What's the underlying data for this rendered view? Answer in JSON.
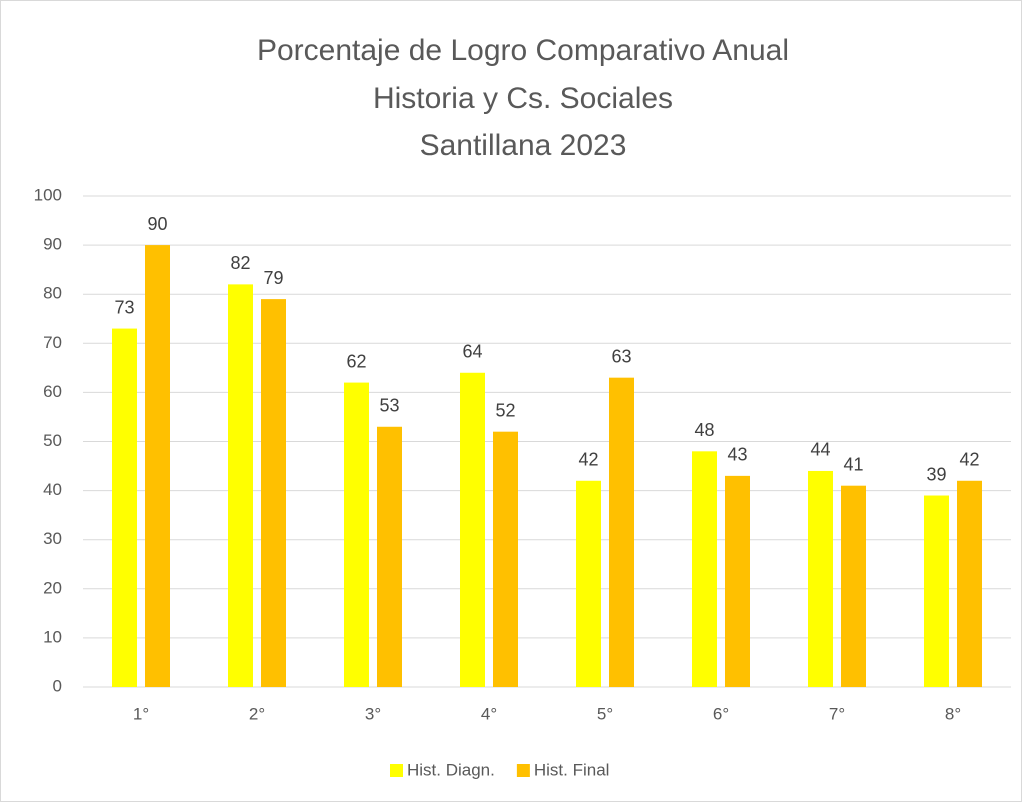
{
  "chart_data": {
    "type": "bar",
    "title": [
      "Porcentaje de Logro Comparativo Anual",
      "Historia y Cs. Sociales",
      "Santillana 2023"
    ],
    "categories": [
      "1°",
      "2°",
      "3°",
      "4°",
      "5°",
      "6°",
      "7°",
      "8°"
    ],
    "series": [
      {
        "name": "Hist. Diagn.",
        "color": "#ffff00",
        "values": [
          73,
          82,
          62,
          64,
          42,
          48,
          44,
          39
        ]
      },
      {
        "name": "Hist. Final",
        "color": "#ffc000",
        "values": [
          90,
          79,
          53,
          52,
          63,
          43,
          41,
          42
        ]
      }
    ],
    "ylim": [
      0,
      100
    ],
    "yticks": [
      0,
      10,
      20,
      30,
      40,
      50,
      60,
      70,
      80,
      90,
      100
    ],
    "grid": true,
    "legend": "bottom"
  }
}
